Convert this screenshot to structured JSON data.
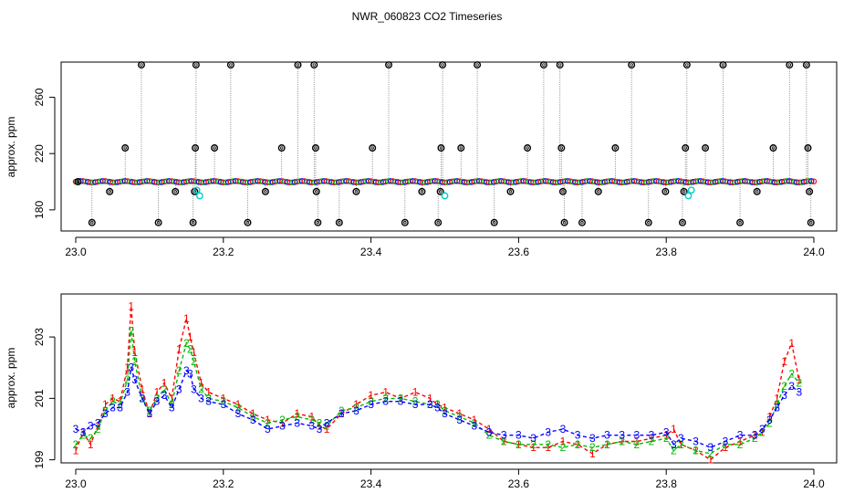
{
  "figure": {
    "title": "NWR_060823  CO2 Timeseries"
  },
  "chart_data": [
    {
      "type": "scatter",
      "panel": "top",
      "title": "NWR_060823  CO2 Timeseries",
      "xlabel": "",
      "ylabel": "approx. ppm",
      "xlim": [
        23.0,
        24.0
      ],
      "ylim": [
        165,
        285
      ],
      "xticks": [
        "23.0",
        "23.2",
        "23.4",
        "23.6",
        "23.8",
        "24.0"
      ],
      "yticks": [
        "180",
        "220",
        "260"
      ],
      "grid": false,
      "colors": {
        "series1": "#ff0000",
        "series2": "#00bb00",
        "series3": "#0000ff",
        "marker": "#000000",
        "cyan": "#00cccc",
        "drop": "#888888"
      },
      "baseline": 200,
      "outliers": [
        {
          "x": 23.003,
          "y": 200
        },
        {
          "x": 23.022,
          "y": 171
        },
        {
          "x": 23.046,
          "y": 193
        },
        {
          "x": 23.067,
          "y": 224
        },
        {
          "x": 23.089,
          "y": 283
        },
        {
          "x": 23.112,
          "y": 171
        },
        {
          "x": 23.135,
          "y": 193
        },
        {
          "x": 23.159,
          "y": 171
        },
        {
          "x": 23.161,
          "y": 193
        },
        {
          "x": 23.162,
          "y": 224
        },
        {
          "x": 23.163,
          "y": 283
        },
        {
          "x": 23.188,
          "y": 224
        },
        {
          "x": 23.21,
          "y": 283
        },
        {
          "x": 23.233,
          "y": 171
        },
        {
          "x": 23.257,
          "y": 193
        },
        {
          "x": 23.279,
          "y": 224
        },
        {
          "x": 23.301,
          "y": 283
        },
        {
          "x": 23.323,
          "y": 283
        },
        {
          "x": 23.325,
          "y": 224
        },
        {
          "x": 23.326,
          "y": 193
        },
        {
          "x": 23.328,
          "y": 171
        },
        {
          "x": 23.357,
          "y": 171
        },
        {
          "x": 23.38,
          "y": 193
        },
        {
          "x": 23.402,
          "y": 224
        },
        {
          "x": 23.424,
          "y": 283
        },
        {
          "x": 23.446,
          "y": 171
        },
        {
          "x": 23.469,
          "y": 193
        },
        {
          "x": 23.491,
          "y": 171
        },
        {
          "x": 23.494,
          "y": 193
        },
        {
          "x": 23.495,
          "y": 224
        },
        {
          "x": 23.497,
          "y": 283
        },
        {
          "x": 23.522,
          "y": 224
        },
        {
          "x": 23.544,
          "y": 283
        },
        {
          "x": 23.567,
          "y": 171
        },
        {
          "x": 23.589,
          "y": 193
        },
        {
          "x": 23.612,
          "y": 224
        },
        {
          "x": 23.634,
          "y": 283
        },
        {
          "x": 23.656,
          "y": 283
        },
        {
          "x": 23.658,
          "y": 224
        },
        {
          "x": 23.66,
          "y": 193
        },
        {
          "x": 23.662,
          "y": 171
        },
        {
          "x": 23.686,
          "y": 171
        },
        {
          "x": 23.708,
          "y": 193
        },
        {
          "x": 23.731,
          "y": 224
        },
        {
          "x": 23.753,
          "y": 283
        },
        {
          "x": 23.776,
          "y": 171
        },
        {
          "x": 23.799,
          "y": 193
        },
        {
          "x": 23.822,
          "y": 171
        },
        {
          "x": 23.824,
          "y": 193
        },
        {
          "x": 23.826,
          "y": 224
        },
        {
          "x": 23.828,
          "y": 283
        },
        {
          "x": 23.853,
          "y": 224
        },
        {
          "x": 23.877,
          "y": 283
        },
        {
          "x": 23.9,
          "y": 171
        },
        {
          "x": 23.923,
          "y": 193
        },
        {
          "x": 23.945,
          "y": 224
        },
        {
          "x": 23.967,
          "y": 283
        },
        {
          "x": 23.99,
          "y": 283
        },
        {
          "x": 23.992,
          "y": 224
        },
        {
          "x": 23.994,
          "y": 193
        },
        {
          "x": 23.996,
          "y": 171
        }
      ],
      "cyan_points": [
        {
          "x": 23.164,
          "y": 194
        },
        {
          "x": 23.168,
          "y": 190
        },
        {
          "x": 23.5,
          "y": 190
        },
        {
          "x": 23.83,
          "y": 190
        },
        {
          "x": 23.834,
          "y": 194
        }
      ]
    },
    {
      "type": "line",
      "panel": "bottom",
      "xlabel": "",
      "ylabel": "approx. ppm",
      "xlim": [
        23.0,
        24.0
      ],
      "ylim": [
        198.9,
        204.4
      ],
      "xticks": [
        "23.0",
        "23.2",
        "23.4",
        "23.6",
        "23.8",
        "24.0"
      ],
      "yticks": [
        "199",
        "201",
        "203"
      ],
      "grid": false,
      "point_labels": [
        "1",
        "2",
        "3"
      ],
      "series": [
        {
          "name": "1",
          "color": "#ff0000",
          "x": [
            23.0,
            23.01,
            23.02,
            23.03,
            23.04,
            23.05,
            23.06,
            23.07,
            23.075,
            23.08,
            23.09,
            23.1,
            23.11,
            23.12,
            23.13,
            23.14,
            23.15,
            23.155,
            23.16,
            23.17,
            23.18,
            23.2,
            23.22,
            23.24,
            23.26,
            23.28,
            23.3,
            23.32,
            23.33,
            23.34,
            23.36,
            23.38,
            23.4,
            23.42,
            23.44,
            23.46,
            23.48,
            23.49,
            23.5,
            23.52,
            23.54,
            23.56,
            23.58,
            23.6,
            23.62,
            23.64,
            23.66,
            23.68,
            23.7,
            23.72,
            23.74,
            23.76,
            23.78,
            23.8,
            23.81,
            23.82,
            23.84,
            23.86,
            23.88,
            23.9,
            23.92,
            23.93,
            23.94,
            23.95,
            23.96,
            23.97,
            23.98
          ],
          "values": [
            199.3,
            199.9,
            199.5,
            200.1,
            200.8,
            201.0,
            200.9,
            202.0,
            204.0,
            202.5,
            201.3,
            200.5,
            201.2,
            201.5,
            201.0,
            202.6,
            203.6,
            203.0,
            202.5,
            201.5,
            201.2,
            201.0,
            200.8,
            200.5,
            200.3,
            200.2,
            200.5,
            200.4,
            200.1,
            200.0,
            200.5,
            200.8,
            201.1,
            201.2,
            201.0,
            201.2,
            201.0,
            200.8,
            200.7,
            200.5,
            200.3,
            200.0,
            199.6,
            199.5,
            199.4,
            199.4,
            199.6,
            199.5,
            199.2,
            199.5,
            199.6,
            199.6,
            199.7,
            199.8,
            200.0,
            199.5,
            199.3,
            199.0,
            199.4,
            199.6,
            199.8,
            199.9,
            200.4,
            201.0,
            202.2,
            202.8,
            201.6
          ]
        },
        {
          "name": "2",
          "color": "#00bb00",
          "x": [
            23.0,
            23.01,
            23.02,
            23.03,
            23.04,
            23.05,
            23.06,
            23.07,
            23.075,
            23.08,
            23.09,
            23.1,
            23.11,
            23.12,
            23.13,
            23.14,
            23.15,
            23.155,
            23.16,
            23.17,
            23.18,
            23.2,
            23.22,
            23.24,
            23.26,
            23.28,
            23.3,
            23.32,
            23.33,
            23.34,
            23.36,
            23.38,
            23.4,
            23.42,
            23.44,
            23.46,
            23.48,
            23.49,
            23.5,
            23.52,
            23.54,
            23.56,
            23.58,
            23.6,
            23.62,
            23.64,
            23.66,
            23.68,
            23.7,
            23.72,
            23.74,
            23.76,
            23.78,
            23.8,
            23.81,
            23.82,
            23.84,
            23.86,
            23.88,
            23.9,
            23.92,
            23.93,
            23.94,
            23.95,
            23.96,
            23.97,
            23.98
          ],
          "values": [
            199.5,
            199.8,
            199.7,
            200.0,
            200.6,
            200.9,
            200.8,
            201.6,
            203.2,
            202.2,
            201.0,
            200.6,
            201.0,
            201.3,
            200.8,
            201.9,
            202.8,
            202.6,
            202.2,
            201.3,
            201.0,
            200.9,
            200.7,
            200.4,
            200.2,
            200.3,
            200.4,
            200.3,
            200.2,
            200.1,
            200.6,
            200.7,
            200.9,
            201.0,
            201.0,
            200.9,
            200.8,
            200.8,
            200.6,
            200.4,
            200.2,
            199.8,
            199.6,
            199.5,
            199.5,
            199.5,
            199.4,
            199.5,
            199.4,
            199.5,
            199.6,
            199.5,
            199.6,
            199.7,
            199.3,
            199.5,
            199.3,
            199.2,
            199.5,
            199.5,
            199.7,
            199.9,
            200.2,
            200.8,
            201.4,
            201.8,
            201.5
          ]
        },
        {
          "name": "3",
          "color": "#0000ff",
          "x": [
            23.0,
            23.01,
            23.02,
            23.03,
            23.04,
            23.05,
            23.06,
            23.07,
            23.075,
            23.08,
            23.09,
            23.1,
            23.11,
            23.12,
            23.13,
            23.14,
            23.15,
            23.155,
            23.16,
            23.17,
            23.18,
            23.2,
            23.22,
            23.24,
            23.26,
            23.28,
            23.3,
            23.32,
            23.33,
            23.34,
            23.36,
            23.38,
            23.4,
            23.42,
            23.44,
            23.46,
            23.48,
            23.49,
            23.5,
            23.52,
            23.54,
            23.56,
            23.58,
            23.6,
            23.62,
            23.64,
            23.66,
            23.68,
            23.7,
            23.72,
            23.74,
            23.76,
            23.78,
            23.8,
            23.81,
            23.82,
            23.84,
            23.86,
            23.88,
            23.9,
            23.92,
            23.93,
            23.94,
            23.95,
            23.96,
            23.97,
            23.98
          ],
          "values": [
            200.0,
            199.9,
            200.1,
            200.2,
            200.5,
            200.7,
            200.7,
            201.2,
            202.0,
            201.6,
            201.0,
            200.5,
            200.9,
            201.1,
            200.7,
            201.3,
            201.9,
            201.8,
            201.3,
            201.0,
            200.9,
            200.8,
            200.5,
            200.3,
            200.0,
            200.1,
            200.2,
            200.1,
            200.0,
            200.2,
            200.5,
            200.6,
            200.8,
            200.9,
            200.9,
            200.8,
            200.8,
            200.7,
            200.5,
            200.3,
            200.1,
            199.9,
            199.8,
            199.8,
            199.7,
            199.9,
            200.0,
            199.8,
            199.7,
            199.8,
            199.8,
            199.8,
            199.8,
            199.9,
            199.5,
            199.7,
            199.6,
            199.4,
            199.6,
            199.8,
            199.8,
            200.0,
            200.3,
            200.7,
            201.1,
            201.4,
            201.2
          ]
        }
      ]
    }
  ]
}
